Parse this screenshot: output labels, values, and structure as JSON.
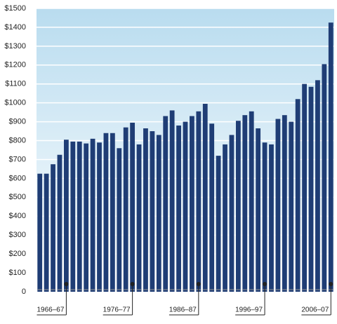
{
  "chart_data": {
    "type": "bar",
    "categories": [
      null,
      null,
      null,
      null,
      "1966–67",
      null,
      null,
      null,
      null,
      null,
      null,
      null,
      null,
      null,
      "1976–77",
      null,
      null,
      null,
      null,
      null,
      null,
      null,
      null,
      null,
      "1986–87",
      null,
      null,
      null,
      null,
      null,
      null,
      null,
      null,
      null,
      "1996–97",
      null,
      null,
      null,
      null,
      null,
      null,
      null,
      null,
      null,
      "2006–07"
    ],
    "values": [
      625,
      625,
      675,
      725,
      805,
      795,
      795,
      785,
      810,
      790,
      840,
      840,
      760,
      870,
      895,
      780,
      865,
      850,
      830,
      930,
      960,
      880,
      900,
      930,
      955,
      995,
      890,
      720,
      780,
      830,
      905,
      935,
      955,
      865,
      790,
      780,
      915,
      935,
      900,
      1020,
      1100,
      1085,
      1120,
      1205,
      1425
    ],
    "color": "#1f3d75",
    "ylim": [
      0,
      1500
    ],
    "yticks": [
      0,
      {
        "value": 100,
        "label": "$100"
      },
      {
        "value": 200,
        "label": "$200"
      },
      {
        "value": 300,
        "label": "$300"
      },
      {
        "value": 400,
        "label": "$400"
      },
      {
        "value": 500,
        "label": "$500"
      },
      {
        "value": 600,
        "label": "$600"
      },
      {
        "value": 700,
        "label": "$700"
      },
      {
        "value": 800,
        "label": "$800"
      },
      {
        "value": 900,
        "label": "$900"
      },
      {
        "value": 1000,
        "label": "$1000"
      },
      {
        "value": 1100,
        "label": "$1100"
      },
      {
        "value": 1200,
        "label": "$1200"
      },
      {
        "value": 1300,
        "label": "$1300"
      },
      {
        "value": 1400,
        "label": "$1400"
      },
      {
        "value": 1500,
        "label": "$1500"
      }
    ],
    "grid": true
  }
}
